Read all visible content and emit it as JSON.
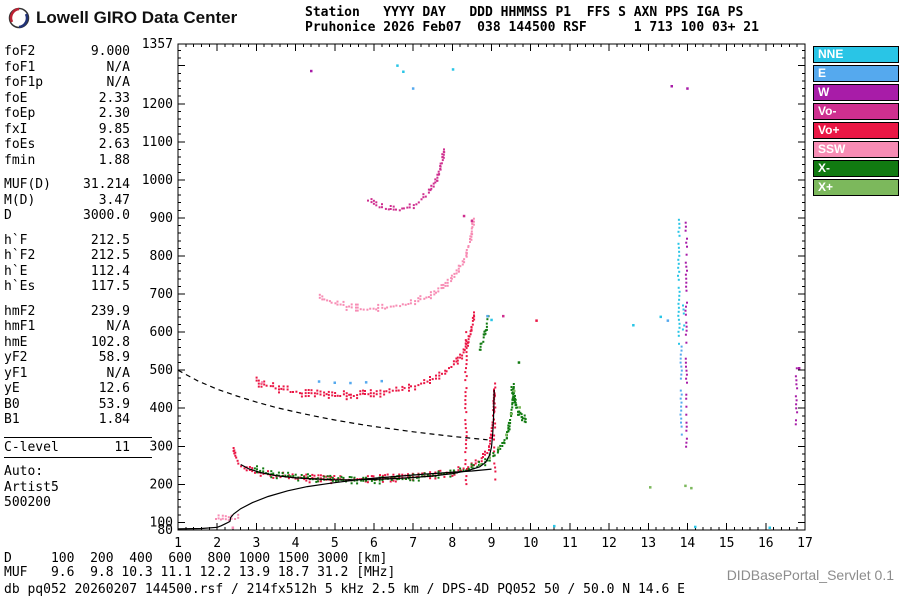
{
  "header": {
    "brand": "Lowell GIRO Data Center",
    "line1": "Station   YYYY DAY   DDD HHMMSS P1  FFS S AXN PPS IGA PS",
    "line2": "Pruhonice 2026 Feb07  038 144500 RSF      1 713 100 03+ 21"
  },
  "parameters": {
    "groups": [
      {
        "rows": [
          [
            "foF2",
            "9.000"
          ],
          [
            "foF1",
            "N/A"
          ],
          [
            "foF1p",
            "N/A"
          ],
          [
            "foE",
            "2.33"
          ],
          [
            "foEp",
            "2.30"
          ],
          [
            "fxI",
            "9.85"
          ],
          [
            "foEs",
            "2.63"
          ],
          [
            "fmin",
            "1.88"
          ]
        ]
      },
      {
        "rows": [
          [
            "MUF(D)",
            "31.214"
          ],
          [
            "M(D)",
            "3.47"
          ],
          [
            "D",
            "3000.0"
          ]
        ]
      },
      {
        "rows": [
          [
            "h`F",
            "212.5"
          ],
          [
            "h`F2",
            "212.5"
          ],
          [
            "h`E",
            "112.4"
          ],
          [
            "h`Es",
            "117.5"
          ]
        ]
      },
      {
        "rows": [
          [
            "hmF2",
            "239.9"
          ],
          [
            "hmF1",
            "N/A"
          ],
          [
            "hmE",
            "102.8"
          ],
          [
            "yF2",
            "58.9"
          ],
          [
            "yF1",
            "N/A"
          ],
          [
            "yE",
            "12.6"
          ],
          [
            "B0",
            "53.9"
          ],
          [
            "B1",
            "1.84"
          ]
        ]
      },
      {
        "divided": true,
        "rows": [
          [
            "C-level",
            "11"
          ]
        ]
      },
      {
        "rows": [
          [
            "Auto:",
            ""
          ],
          [
            "Artist5",
            ""
          ],
          [
            "500200",
            ""
          ]
        ]
      }
    ]
  },
  "legend": {
    "items": [
      {
        "label": "NNE",
        "color": "#29c5e6"
      },
      {
        "label": "E",
        "color": "#55a9ee"
      },
      {
        "label": "W",
        "color": "#a81ca8"
      },
      {
        "label": "Vo-",
        "color": "#cf2f8f"
      },
      {
        "label": "Vo+",
        "color": "#ea1745"
      },
      {
        "label": "SSW",
        "color": "#f78cb4"
      },
      {
        "label": "X-",
        "color": "#117a11"
      },
      {
        "label": "X+",
        "color": "#7cb85c"
      }
    ]
  },
  "muf_table": {
    "rows": [
      {
        "label": "D",
        "values": [
          "100",
          "200",
          "400",
          "600",
          "800",
          "1000",
          "1500",
          "3000"
        ],
        "unit": "[km]"
      },
      {
        "label": "MUF",
        "values": [
          "9.6",
          "9.8",
          "10.3",
          "11.1",
          "12.2",
          "13.9",
          "18.7",
          "31.2"
        ],
        "unit": "[MHz]"
      }
    ]
  },
  "status": {
    "left": "db pq052 20260207 144500.rsf / 214fx512h 5 kHz 2.5 km / DPS-4D PQ052 50 / 50.0 N 14.6 E",
    "servlet": "DIDBasePortal_Servlet 0.1"
  },
  "chart_data": {
    "type": "scatter",
    "title": "",
    "xlabel": "",
    "ylabel": "",
    "xlim": [
      1,
      17
    ],
    "ylim": [
      80,
      1357
    ],
    "x_ticks": [
      1,
      2,
      3,
      4,
      5,
      6,
      7,
      8,
      9,
      10,
      11,
      12,
      13,
      14,
      15,
      16,
      17
    ],
    "y_ticks": [
      80,
      100,
      200,
      300,
      400,
      500,
      600,
      700,
      800,
      900,
      1000,
      1100,
      1200,
      1357
    ],
    "series": [
      {
        "name": "Vo+",
        "paths": [
          [
            [
              2.42,
              288
            ],
            [
              2.48,
              268
            ],
            [
              2.55,
              252
            ],
            [
              2.7,
              242
            ],
            [
              2.9,
              234
            ],
            [
              3.2,
              227
            ],
            [
              3.6,
              221
            ],
            [
              4.0,
              217
            ],
            [
              4.5,
              214
            ],
            [
              5.0,
              213
            ],
            [
              5.5,
              213
            ],
            [
              6.0,
              214
            ],
            [
              6.5,
              216
            ],
            [
              7.0,
              219
            ],
            [
              7.5,
              224
            ],
            [
              8.0,
              231
            ],
            [
              8.3,
              239
            ],
            [
              8.55,
              249
            ],
            [
              8.75,
              263
            ],
            [
              8.9,
              284
            ],
            [
              8.98,
              314
            ],
            [
              9.03,
              355
            ],
            [
              9.06,
              405
            ],
            [
              9.08,
              455
            ]
          ],
          [
            [
              3.0,
              470
            ],
            [
              3.35,
              457
            ],
            [
              3.7,
              448
            ],
            [
              4.1,
              441
            ],
            [
              4.5,
              437
            ],
            [
              5.0,
              434
            ],
            [
              5.5,
              434
            ],
            [
              6.0,
              438
            ],
            [
              6.4,
              444
            ],
            [
              6.8,
              452
            ],
            [
              7.2,
              463
            ],
            [
              7.5,
              476
            ],
            [
              7.8,
              492
            ],
            [
              8.05,
              514
            ],
            [
              8.25,
              541
            ],
            [
              8.4,
              574
            ],
            [
              8.5,
              612
            ],
            [
              8.57,
              650
            ]
          ]
        ],
        "strips": [
          [
            8.35,
            196,
            600
          ],
          [
            9.08,
            208,
            465
          ]
        ],
        "singles": [
          [
            10.15,
            630
          ]
        ]
      },
      {
        "name": "SSW",
        "paths": [
          [
            [
              4.6,
              690
            ],
            [
              5.0,
              674
            ],
            [
              5.45,
              664
            ],
            [
              5.9,
              660
            ],
            [
              6.35,
              663
            ],
            [
              6.8,
              672
            ],
            [
              7.2,
              685
            ],
            [
              7.6,
              704
            ],
            [
              7.9,
              728
            ],
            [
              8.15,
              758
            ],
            [
              8.35,
              800
            ],
            [
              8.48,
              850
            ],
            [
              8.55,
              900
            ]
          ],
          [
            [
              1.95,
              108
            ],
            [
              2.3,
              107
            ],
            [
              2.6,
              111
            ]
          ]
        ],
        "singles": [
          [
            2.4,
            86
          ],
          [
            3.15,
            468
          ]
        ]
      },
      {
        "name": "Vo-",
        "paths": [
          [
            [
              5.85,
              945
            ],
            [
              6.15,
              928
            ],
            [
              6.5,
              920
            ],
            [
              6.85,
              926
            ],
            [
              7.15,
              941
            ],
            [
              7.4,
              964
            ],
            [
              7.6,
              998
            ],
            [
              7.73,
              1042
            ],
            [
              7.8,
              1088
            ]
          ]
        ],
        "singles": [
          [
            8.3,
            905
          ],
          [
            8.5,
            892
          ],
          [
            9.3,
            642
          ]
        ]
      },
      {
        "name": "X-",
        "paths": [
          [
            [
              2.95,
              240
            ],
            [
              3.3,
              229
            ],
            [
              3.8,
              221
            ],
            [
              4.3,
              216
            ],
            [
              4.8,
              212
            ],
            [
              5.3,
              210
            ],
            [
              5.8,
              211
            ],
            [
              6.3,
              213
            ],
            [
              6.8,
              216
            ],
            [
              7.3,
              220
            ],
            [
              7.8,
              226
            ],
            [
              8.2,
              234
            ],
            [
              8.55,
              244
            ],
            [
              8.85,
              258
            ],
            [
              9.1,
              277
            ],
            [
              9.28,
              300
            ],
            [
              9.4,
              330
            ],
            [
              9.48,
              370
            ],
            [
              9.54,
              420
            ],
            [
              9.58,
              465
            ]
          ],
          [
            [
              9.5,
              448
            ],
            [
              9.58,
              415
            ],
            [
              9.66,
              392
            ],
            [
              9.76,
              376
            ],
            [
              9.86,
              366
            ],
            [
              9.95,
              362
            ]
          ],
          [
            [
              9.56,
              440
            ],
            [
              9.64,
              406
            ],
            [
              9.73,
              386
            ],
            [
              9.83,
              372
            ],
            [
              9.92,
              365
            ]
          ],
          [
            [
              8.72,
              556
            ],
            [
              8.84,
              598
            ],
            [
              8.94,
              648
            ]
          ]
        ],
        "singles": [
          [
            9.7,
            520
          ]
        ]
      },
      {
        "name": "X+",
        "singles": [
          [
            8.72,
            252
          ],
          [
            8.95,
            270
          ],
          [
            9.18,
            296
          ],
          [
            9.38,
            330
          ],
          [
            9.5,
            385
          ],
          [
            9.58,
            445
          ],
          [
            9.72,
            402
          ],
          [
            13.05,
            192
          ],
          [
            13.95,
            196
          ],
          [
            14.1,
            190
          ]
        ]
      },
      {
        "name": "NNE",
        "strips": [
          [
            13.78,
            565,
            895
          ],
          [
            13.9,
            598,
            670
          ]
        ],
        "singles": [
          [
            12.62,
            618
          ],
          [
            13.32,
            640
          ],
          [
            6.6,
            1300
          ],
          [
            6.75,
            1284
          ],
          [
            8.02,
            1290
          ],
          [
            14.2,
            88
          ],
          [
            10.6,
            90
          ],
          [
            16.1,
            86
          ],
          [
            9.0,
            632
          ]
        ]
      },
      {
        "name": "E",
        "strips": [
          [
            13.84,
            322,
            562
          ]
        ],
        "singles": [
          [
            4.6,
            470
          ],
          [
            5.0,
            467
          ],
          [
            5.4,
            466
          ],
          [
            5.8,
            468
          ],
          [
            6.2,
            471
          ],
          [
            8.9,
            642
          ],
          [
            13.5,
            630
          ],
          [
            7.0,
            1240
          ]
        ]
      },
      {
        "name": "W",
        "strips": [
          [
            13.97,
            292,
            898
          ],
          [
            16.78,
            340,
            505
          ]
        ],
        "singles": [
          [
            13.6,
            1246
          ],
          [
            4.4,
            1286
          ],
          [
            16.85,
            505
          ],
          [
            14.0,
            1240
          ]
        ]
      }
    ],
    "curves": [
      {
        "name": "true-height-profile",
        "style": "solid",
        "points": [
          [
            1.0,
            83
          ],
          [
            1.6,
            84
          ],
          [
            2.0,
            87
          ],
          [
            2.1,
            91
          ],
          [
            2.2,
            96
          ],
          [
            2.3,
            101
          ],
          [
            2.33,
            103
          ],
          [
            2.34,
            112
          ],
          [
            2.42,
            122
          ],
          [
            2.6,
            136
          ],
          [
            2.9,
            152
          ],
          [
            3.3,
            168
          ],
          [
            3.8,
            183
          ],
          [
            4.3,
            194
          ],
          [
            4.9,
            203
          ],
          [
            5.5,
            211
          ],
          [
            6.1,
            217
          ],
          [
            6.7,
            222
          ],
          [
            7.3,
            227
          ],
          [
            7.9,
            231
          ],
          [
            8.5,
            235
          ],
          [
            9.0,
            240
          ]
        ]
      },
      {
        "name": "fitted-trace",
        "style": "solid",
        "points": [
          [
            2.6,
            252
          ],
          [
            2.8,
            241
          ],
          [
            3.1,
            231
          ],
          [
            3.5,
            223
          ],
          [
            4.0,
            217
          ],
          [
            4.5,
            214
          ],
          [
            5.0,
            212
          ],
          [
            5.5,
            212
          ],
          [
            6.0,
            213
          ],
          [
            6.5,
            215
          ],
          [
            7.0,
            218
          ],
          [
            7.5,
            222
          ],
          [
            8.0,
            228
          ],
          [
            8.4,
            236
          ],
          [
            8.7,
            246
          ],
          [
            8.85,
            258
          ],
          [
            8.95,
            276
          ],
          [
            9.0,
            298
          ],
          [
            9.03,
            332
          ],
          [
            9.05,
            372
          ],
          [
            9.06,
            412
          ],
          [
            9.07,
            448
          ]
        ]
      },
      {
        "name": "muf-transmission-curve",
        "style": "dashed",
        "points": [
          [
            1.0,
            500
          ],
          [
            1.5,
            472
          ],
          [
            2.0,
            450
          ],
          [
            2.5,
            432
          ],
          [
            3.0,
            416
          ],
          [
            3.5,
            402
          ],
          [
            4.0,
            390
          ],
          [
            4.5,
            379
          ],
          [
            5.0,
            369
          ],
          [
            5.5,
            360
          ],
          [
            6.0,
            352
          ],
          [
            6.5,
            345
          ],
          [
            7.0,
            338
          ],
          [
            7.5,
            332
          ],
          [
            8.0,
            326
          ],
          [
            8.5,
            321
          ],
          [
            8.9,
            317
          ]
        ]
      }
    ]
  }
}
